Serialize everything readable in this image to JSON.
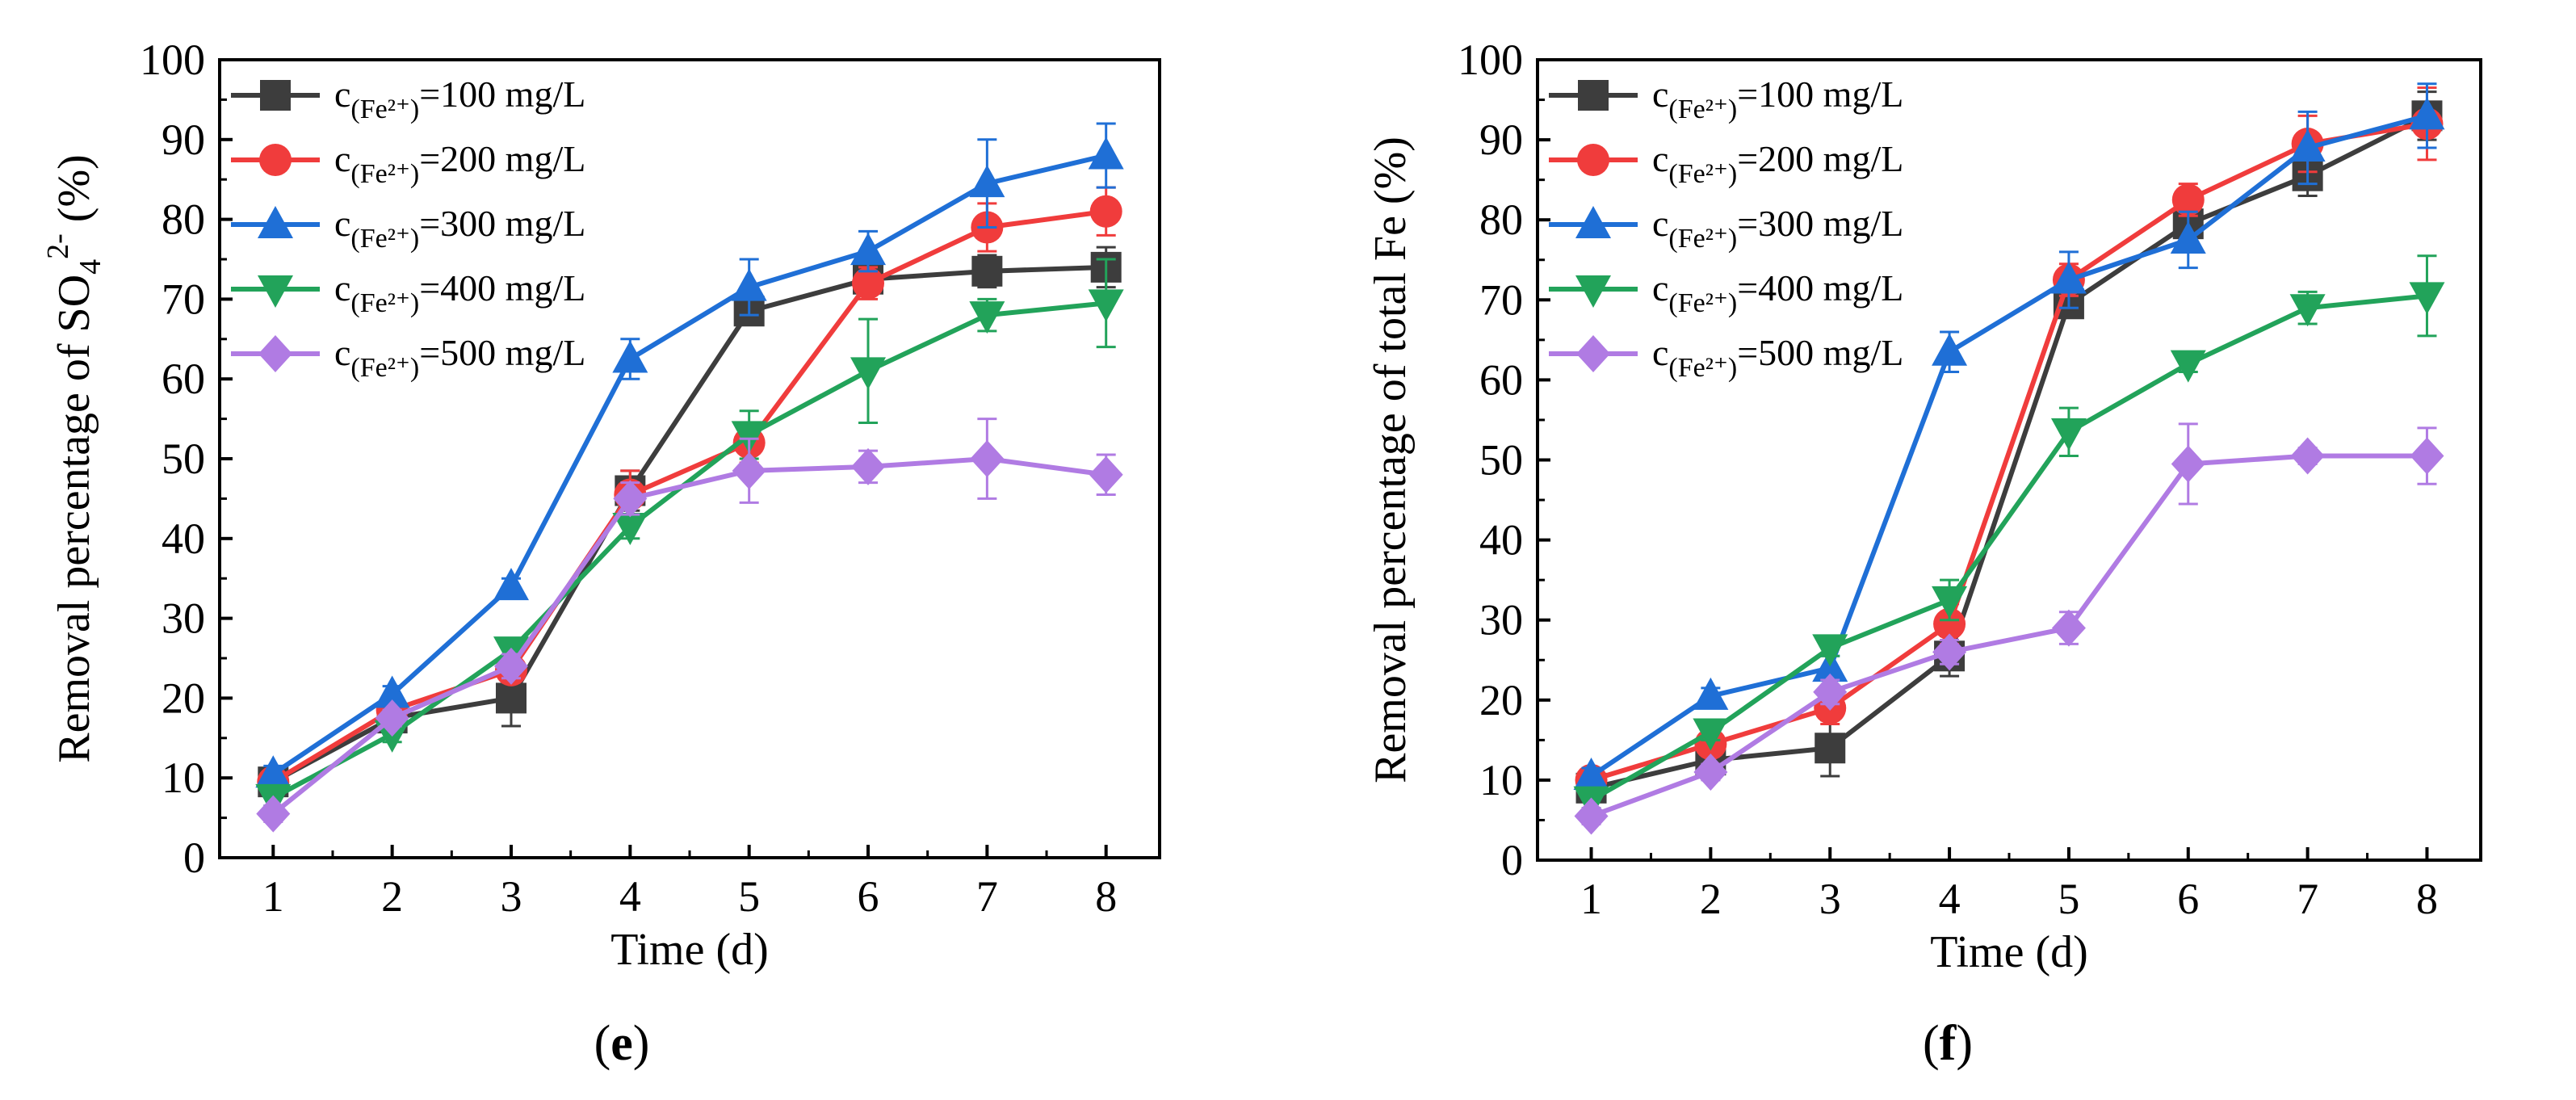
{
  "chart_data": [
    {
      "type": "line",
      "panel": "e",
      "caption": {
        "open": "(",
        "letter": "e",
        "close": ")"
      },
      "xlabel": "Time (d)",
      "ylabel": {
        "prefix": "Removal percentage of SO",
        "sub": "4",
        "sup": "2-",
        "suffix": " (%)"
      },
      "x": [
        1,
        2,
        3,
        4,
        5,
        6,
        7,
        8
      ],
      "xlim": [
        0.55,
        8.45
      ],
      "ylim": [
        0,
        100
      ],
      "yticks": [
        0,
        10,
        20,
        30,
        40,
        50,
        60,
        70,
        80,
        90,
        100
      ],
      "grid": false,
      "legend_position": "top-left",
      "series": [
        {
          "name": "c(Fe2+)=100 mg/L",
          "label_main": "c",
          "label_sub": "(Fe²⁺)",
          "label_rest": "=100 mg/L",
          "color": "#3d3d3d",
          "marker": "square",
          "values": [
            9.5,
            17.5,
            20,
            46,
            68.5,
            72.5,
            73.5,
            74
          ],
          "errors": [
            1,
            1,
            3.5,
            2.5,
            1.5,
            1,
            2,
            2.5
          ]
        },
        {
          "name": "c(Fe2+)=200 mg/L",
          "label_main": "c",
          "label_sub": "(Fe²⁺)",
          "label_rest": "=200 mg/L",
          "color": "#f03c3c",
          "marker": "circle",
          "values": [
            9.5,
            18.5,
            23.5,
            45.5,
            52,
            72,
            79,
            81
          ],
          "errors": [
            1,
            1,
            1.5,
            3,
            2.5,
            2,
            3,
            3
          ]
        },
        {
          "name": "c(Fe2+)=300 mg/L",
          "label_main": "c",
          "label_sub": "(Fe²⁺)",
          "label_rest": "=300 mg/L",
          "color": "#1f6fd6",
          "marker": "triangle-up",
          "values": [
            10.5,
            20.5,
            34,
            62.5,
            71.5,
            76,
            84.5,
            88
          ],
          "errors": [
            1,
            1,
            1,
            2.5,
            3.5,
            2.5,
            5.5,
            4
          ]
        },
        {
          "name": "c(Fe2+)=400 mg/L",
          "label_main": "c",
          "label_sub": "(Fe²⁺)",
          "label_rest": "=400 mg/L",
          "color": "#22a35a",
          "marker": "triangle-down",
          "values": [
            7.5,
            15.5,
            26,
            41.5,
            53,
            61,
            68,
            69.5
          ],
          "errors": [
            1,
            1,
            1,
            1.5,
            3,
            6.5,
            2,
            5.5
          ]
        },
        {
          "name": "c(Fe2+)=500 mg/L",
          "label_main": "c",
          "label_sub": "(Fe²⁺)",
          "label_rest": "=500 mg/L",
          "color": "#b07be3",
          "marker": "diamond",
          "values": [
            5.5,
            17.5,
            24,
            45,
            48.5,
            49,
            50,
            48
          ],
          "errors": [
            1,
            1,
            1.5,
            2,
            4,
            2,
            5,
            2.5
          ]
        }
      ]
    },
    {
      "type": "line",
      "panel": "f",
      "caption": {
        "open": "(",
        "letter": "f",
        "close": ")"
      },
      "xlabel": "Time (d)",
      "ylabel": {
        "prefix": "Removal percentage of total Fe (%)",
        "sub": "",
        "sup": "",
        "suffix": ""
      },
      "x": [
        1,
        2,
        3,
        4,
        5,
        6,
        7,
        8
      ],
      "xlim": [
        0.55,
        8.45
      ],
      "ylim": [
        0,
        100
      ],
      "yticks": [
        0,
        10,
        20,
        30,
        40,
        50,
        60,
        70,
        80,
        90,
        100
      ],
      "grid": false,
      "legend_position": "top-left",
      "series": [
        {
          "name": "c(Fe2+)=100 mg/L",
          "label_main": "c",
          "label_sub": "(Fe²⁺)",
          "label_rest": "=100 mg/L",
          "color": "#3d3d3d",
          "marker": "square",
          "values": [
            9,
            12.5,
            14,
            25.5,
            69.5,
            79.5,
            85.5,
            93
          ],
          "errors": [
            1,
            1,
            3.5,
            2.5,
            1.5,
            1,
            2.5,
            3
          ]
        },
        {
          "name": "c(Fe2+)=200 mg/L",
          "label_main": "c",
          "label_sub": "(Fe²⁺)",
          "label_rest": "=200 mg/L",
          "color": "#f03c3c",
          "marker": "circle",
          "values": [
            10,
            14.5,
            19,
            29.5,
            72.5,
            82.5,
            89.5,
            92
          ],
          "errors": [
            1,
            1,
            2,
            2.5,
            2,
            2,
            3.5,
            4.5
          ]
        },
        {
          "name": "c(Fe2+)=300 mg/L",
          "label_main": "c",
          "label_sub": "(Fe²⁺)",
          "label_rest": "=300 mg/L",
          "color": "#1f6fd6",
          "marker": "triangle-up",
          "values": [
            10.5,
            20.5,
            24,
            63.5,
            72.5,
            77.5,
            89,
            93
          ],
          "errors": [
            1,
            1,
            1.5,
            2.5,
            3.5,
            3.5,
            4.5,
            4
          ]
        },
        {
          "name": "c(Fe2+)=400 mg/L",
          "label_main": "c",
          "label_sub": "(Fe²⁺)",
          "label_rest": "=400 mg/L",
          "color": "#22a35a",
          "marker": "triangle-down",
          "values": [
            7.5,
            16,
            26.5,
            32.5,
            53.5,
            62,
            69,
            70.5
          ],
          "errors": [
            1,
            1,
            1,
            2.5,
            3,
            1,
            2,
            5
          ]
        },
        {
          "name": "c(Fe2+)=500 mg/L",
          "label_main": "c",
          "label_sub": "(Fe²⁺)",
          "label_rest": "=500 mg/L",
          "color": "#b07be3",
          "marker": "diamond",
          "values": [
            5.5,
            11,
            21,
            26,
            29,
            49.5,
            50.5,
            50.5
          ],
          "errors": [
            1,
            1,
            1.5,
            1.5,
            2,
            5,
            1,
            3.5
          ]
        }
      ]
    }
  ]
}
